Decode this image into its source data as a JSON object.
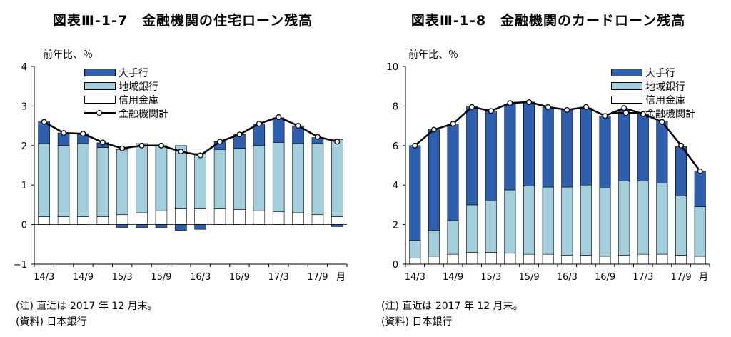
{
  "colors": {
    "large": "#2e5faf",
    "regional": "#a3cedb",
    "shinkin": "#ffffff",
    "total": "#000000",
    "axis": "#000000"
  },
  "charts": [
    {
      "title": "図表Ⅲ-1-7　金融機関の住宅ローン残高",
      "unit_label": "前年比、％",
      "legend": [
        "大手行",
        "地域銀行",
        "信用金庫",
        "金融機関計"
      ],
      "note": "(注) 直近は 2017 年 12 月末。",
      "source": "(資料) 日本銀行",
      "chart_data": {
        "type": "bar",
        "stacked": true,
        "x_unit_label": "月",
        "x_tick_labels": [
          "14/3",
          "14/9",
          "15/3",
          "15/9",
          "16/3",
          "16/9",
          "17/3",
          "17/9"
        ],
        "ylim": [
          -1,
          4
        ],
        "yticks": [
          -1,
          0,
          1,
          2,
          3,
          4
        ],
        "categories": [
          "14/3",
          "14/6",
          "14/9",
          "14/12",
          "15/3",
          "15/6",
          "15/9",
          "15/12",
          "16/3",
          "16/6",
          "16/9",
          "16/12",
          "17/3",
          "17/6",
          "17/9",
          "17/12"
        ],
        "series": [
          {
            "name": "信用金庫",
            "kind": "bar",
            "values": [
              0.2,
              0.2,
              0.2,
              0.2,
              0.25,
              0.3,
              0.35,
              0.4,
              0.4,
              0.4,
              0.38,
              0.35,
              0.33,
              0.3,
              0.25,
              0.2
            ]
          },
          {
            "name": "地域銀行",
            "kind": "bar",
            "values": [
              1.85,
              1.8,
              1.85,
              1.75,
              1.65,
              1.75,
              1.65,
              1.6,
              1.4,
              1.5,
              1.55,
              1.65,
              1.75,
              1.75,
              1.8,
              1.95
            ]
          },
          {
            "name": "大手行",
            "kind": "bar",
            "values": [
              0.55,
              0.32,
              0.25,
              0.12,
              -0.07,
              -0.08,
              -0.07,
              -0.15,
              -0.12,
              0.2,
              0.35,
              0.55,
              0.62,
              0.45,
              0.15,
              -0.05
            ]
          },
          {
            "name": "金融機関計",
            "kind": "line",
            "values": [
              2.6,
              2.32,
              2.3,
              2.08,
              1.93,
              2.0,
              2.0,
              1.85,
              1.75,
              2.1,
              2.28,
              2.55,
              2.72,
              2.5,
              2.22,
              2.1
            ]
          }
        ]
      }
    },
    {
      "title": "図表Ⅲ-1-8　金融機関のカードローン残高",
      "unit_label": "前年比、％",
      "legend": [
        "大手行",
        "地域銀行",
        "信用金庫",
        "金融機関計"
      ],
      "note": "(注) 直近は 2017 年 12 月末。",
      "source": "(資料) 日本銀行",
      "chart_data": {
        "type": "bar",
        "stacked": true,
        "x_unit_label": "月",
        "x_tick_labels": [
          "14/3",
          "14/9",
          "15/3",
          "15/9",
          "16/3",
          "16/9",
          "17/3",
          "17/9"
        ],
        "ylim": [
          0,
          10
        ],
        "yticks": [
          0,
          2,
          4,
          6,
          8,
          10
        ],
        "categories": [
          "14/3",
          "14/6",
          "14/9",
          "14/12",
          "15/3",
          "15/6",
          "15/9",
          "15/12",
          "16/3",
          "16/6",
          "16/9",
          "16/12",
          "17/3",
          "17/6",
          "17/9",
          "17/12"
        ],
        "series": [
          {
            "name": "信用金庫",
            "kind": "bar",
            "values": [
              0.3,
              0.4,
              0.5,
              0.6,
              0.6,
              0.55,
              0.5,
              0.5,
              0.45,
              0.45,
              0.4,
              0.45,
              0.5,
              0.5,
              0.45,
              0.4
            ]
          },
          {
            "name": "地域銀行",
            "kind": "bar",
            "values": [
              0.9,
              1.3,
              1.7,
              2.4,
              2.6,
              3.2,
              3.45,
              3.4,
              3.45,
              3.55,
              3.45,
              3.75,
              3.7,
              3.6,
              3.0,
              2.5
            ]
          },
          {
            "name": "大手行",
            "kind": "bar",
            "values": [
              4.8,
              5.1,
              4.9,
              5.0,
              4.55,
              4.35,
              4.25,
              4.05,
              3.9,
              3.9,
              3.65,
              3.65,
              3.4,
              3.15,
              2.5,
              1.8
            ]
          },
          {
            "name": "金融機関計",
            "kind": "line",
            "values": [
              6.0,
              6.8,
              7.1,
              7.95,
              7.75,
              8.15,
              8.2,
              7.95,
              7.8,
              7.95,
              7.5,
              7.9,
              7.6,
              7.2,
              6.0,
              4.7
            ]
          }
        ]
      }
    }
  ]
}
